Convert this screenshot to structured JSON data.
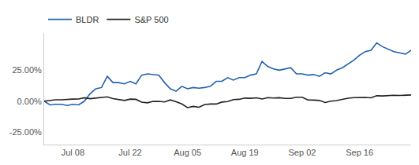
{
  "chart_data": {
    "type": "line",
    "categories": [
      null,
      null,
      null,
      null,
      null,
      "Jul 08",
      null,
      null,
      null,
      null,
      null,
      null,
      null,
      null,
      null,
      "Jul 22",
      null,
      null,
      null,
      null,
      null,
      null,
      null,
      null,
      null,
      "Aug 05",
      null,
      null,
      null,
      null,
      null,
      null,
      null,
      null,
      null,
      "Aug 19",
      null,
      null,
      null,
      null,
      null,
      null,
      null,
      null,
      null,
      "Sep 02",
      null,
      null,
      null,
      null,
      null,
      null,
      null,
      null,
      null,
      "Sep 16",
      null,
      null,
      null,
      null,
      null,
      null,
      null,
      null,
      null
    ],
    "series": [
      {
        "name": "BLDR",
        "color": "#2160b0",
        "values": [
          0,
          -3,
          -2.5,
          -2.5,
          -3.5,
          -2.5,
          -3,
          0,
          6,
          10,
          11,
          20,
          15,
          15,
          14,
          16,
          14,
          21,
          22,
          21.5,
          21,
          15,
          10,
          8,
          12,
          10,
          11,
          10.5,
          11,
          12,
          16,
          16,
          19,
          17,
          19,
          19,
          21,
          22,
          32,
          28,
          26,
          25,
          26,
          27,
          22,
          22,
          21,
          21.5,
          20,
          23,
          22,
          25,
          27,
          30,
          33,
          37,
          40,
          41,
          47,
          44,
          42,
          40,
          39,
          38,
          41
        ]
      },
      {
        "name": "S&P 500",
        "color": "#222222",
        "values": [
          0,
          0.6,
          1.1,
          1.1,
          1.6,
          1.7,
          1.8,
          2.8,
          2.0,
          2.6,
          2.9,
          3.5,
          2.1,
          1.3,
          0.6,
          1.7,
          1.5,
          -0.8,
          -1.3,
          -0.2,
          -0.1,
          -0.6,
          1.0,
          -0.4,
          -2.2,
          -5.2,
          -4.2,
          -4.9,
          -2.7,
          -2.3,
          -2.3,
          -0.7,
          -0.3,
          1.3,
          1.5,
          2.5,
          2.3,
          2.7,
          1.8,
          2.9,
          2.6,
          2.8,
          2.2,
          2.2,
          3.2,
          3.2,
          1.0,
          0.9,
          0.6,
          -1.1,
          0.0,
          0.5,
          1.6,
          2.4,
          2.9,
          3.0,
          3.0,
          2.7,
          4.4,
          4.2,
          4.5,
          4.8,
          4.6,
          5.0,
          5.0
        ]
      }
    ],
    "ylim": [
      -35,
      55
    ],
    "yticks": [
      {
        "value": -25,
        "label": "-25.00%"
      },
      {
        "value": 0,
        "label": "0.00%"
      },
      {
        "value": 25,
        "label": "25.00%"
      }
    ],
    "grid": false,
    "legend": "top-left"
  }
}
